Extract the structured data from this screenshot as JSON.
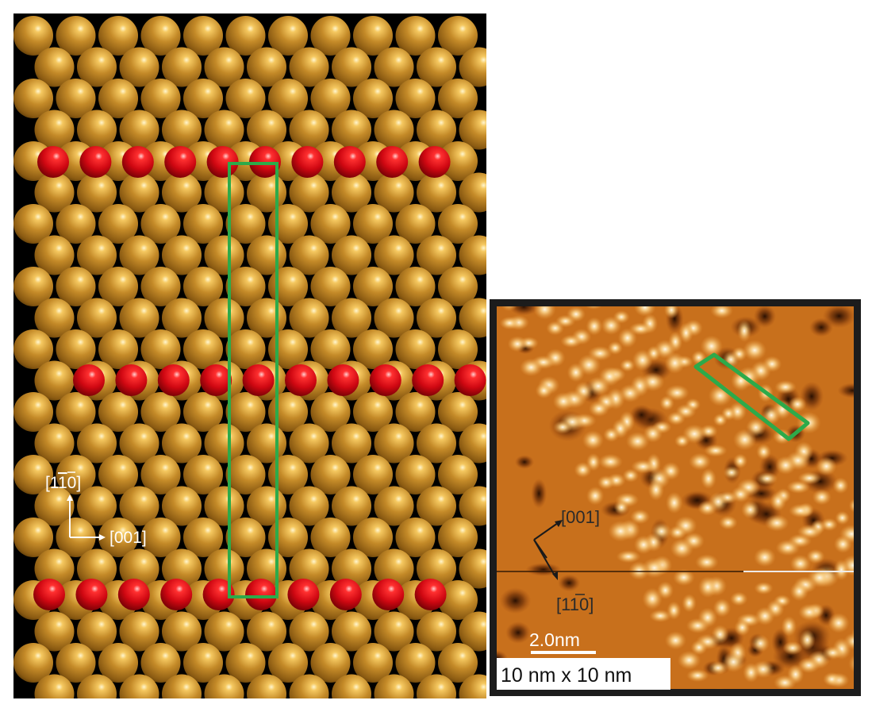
{
  "model_panel": {
    "axis_vertical_label": "[1̅0]",
    "axis_vertical_main": "1",
    "axis_vertical_bar_digit": "1",
    "axis_vertical_tail": "0",
    "axis_horizontal_label": "[001]",
    "substrate_color": "#b07a22",
    "adatom_color": "#d8101a",
    "unit_cell_color": "#2daa4a"
  },
  "stm_panel": {
    "axis_a_label": "[001]",
    "axis_b_main": "1",
    "axis_b_bar_digit": "1",
    "axis_b_tail": "0",
    "scale_bar_label": "2.0nm",
    "size_label": "10 nm x 10 nm",
    "unit_cell_color": "#2daa4a"
  }
}
